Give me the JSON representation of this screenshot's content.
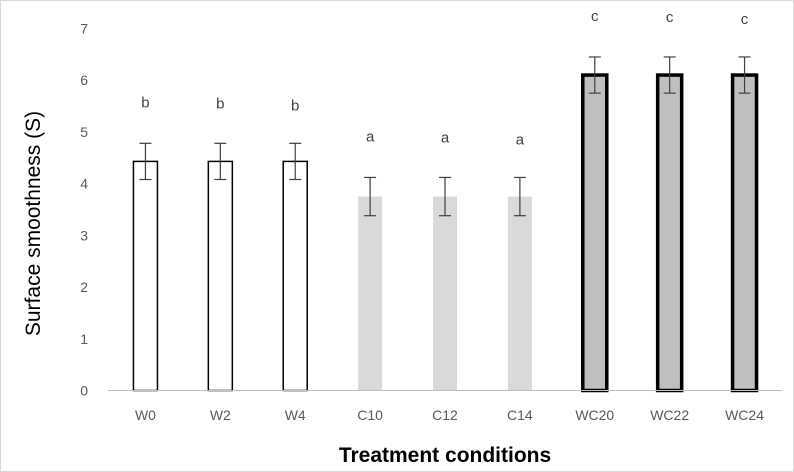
{
  "chart_data": {
    "type": "bar",
    "title": "",
    "xlabel": "Treatment conditions",
    "ylabel": "Surface smoothness (S)",
    "ylim": [
      0,
      7
    ],
    "yticks": [
      0,
      1,
      2,
      3,
      4,
      5,
      6,
      7
    ],
    "grid": false,
    "categories": [
      "W0",
      "W2",
      "W4",
      "C10",
      "C12",
      "C14",
      "WC20",
      "WC22",
      "WC24"
    ],
    "values": [
      4.43,
      4.43,
      4.43,
      3.75,
      3.75,
      3.75,
      6.1,
      6.1,
      6.1
    ],
    "errors": [
      0.35,
      0.35,
      0.35,
      0.37,
      0.37,
      0.37,
      0.35,
      0.35,
      0.35
    ],
    "significance_letters": [
      "b",
      "b",
      "b",
      "a",
      "a",
      "a",
      "c",
      "c",
      "c"
    ],
    "bar_styles": [
      {
        "fill": "#ffffff",
        "stroke": "#000000",
        "stroke_width": 1.5
      },
      {
        "fill": "#ffffff",
        "stroke": "#000000",
        "stroke_width": 1.5
      },
      {
        "fill": "#ffffff",
        "stroke": "#000000",
        "stroke_width": 1.5
      },
      {
        "fill": "#d9d9d9",
        "stroke": "#d9d9d9",
        "stroke_width": 0
      },
      {
        "fill": "#d9d9d9",
        "stroke": "#d9d9d9",
        "stroke_width": 0
      },
      {
        "fill": "#d9d9d9",
        "stroke": "#d9d9d9",
        "stroke_width": 0
      },
      {
        "fill": "#bfbfbf",
        "stroke": "#000000",
        "stroke_width": 3.5
      },
      {
        "fill": "#bfbfbf",
        "stroke": "#000000",
        "stroke_width": 3.5
      },
      {
        "fill": "#bfbfbf",
        "stroke": "#000000",
        "stroke_width": 3.5
      }
    ],
    "colors": {
      "axis": "#bfbfbf",
      "error_bar": "#404040"
    }
  }
}
